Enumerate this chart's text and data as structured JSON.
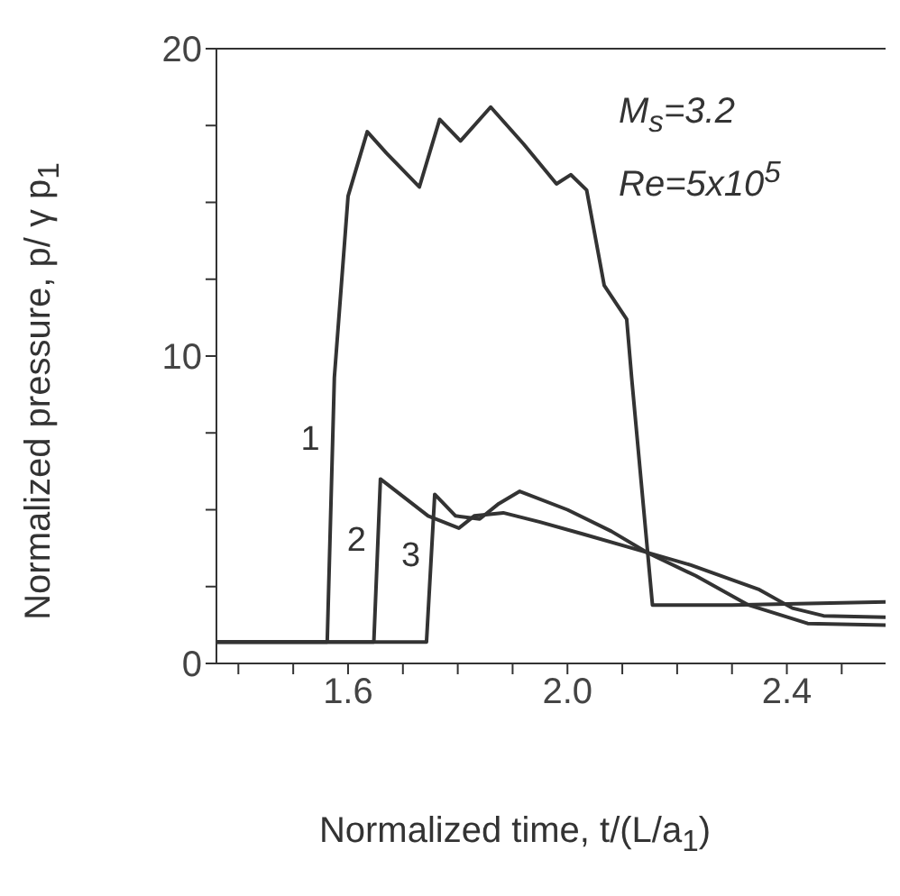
{
  "chart_data": {
    "type": "line",
    "xlabel": "Normalized time, t/(L/a$_{1}$)",
    "ylabel": "Normalized pressure, p/ γ p$_{1}$",
    "xlim": [
      1.36,
      2.58
    ],
    "xticks": [
      {
        "value": 1.4,
        "label": null
      },
      {
        "value": 1.5,
        "label": null
      },
      1.6,
      {
        "value": 1.7,
        "label": null
      },
      {
        "value": 1.8,
        "label": null
      },
      {
        "value": 1.9,
        "label": null
      },
      {
        "value": 2.0,
        "label": "2.0"
      },
      {
        "value": 2.1,
        "label": null
      },
      {
        "value": 2.2,
        "label": null
      },
      {
        "value": 2.3,
        "label": null
      },
      2.4,
      {
        "value": 2.5,
        "label": null
      }
    ],
    "ylim": [
      0,
      20
    ],
    "yticks": [
      0,
      {
        "value": 2.5,
        "label": null
      },
      {
        "value": 5,
        "label": null
      },
      {
        "value": 7.5,
        "label": null
      },
      10,
      {
        "value": 12.5,
        "label": null
      },
      {
        "value": 15,
        "label": null
      },
      {
        "value": 17.5,
        "label": null
      },
      20
    ],
    "line_style": "solid",
    "marker": "none",
    "series": [
      {
        "name": "1",
        "color": "#333333",
        "x": [
          1.36,
          1.562,
          1.575,
          1.6,
          1.635,
          1.67,
          1.73,
          1.767,
          1.805,
          1.86,
          1.92,
          1.98,
          2.006,
          2.035,
          2.067,
          2.108,
          2.117,
          2.155,
          2.3,
          2.58
        ],
        "values": [
          0.7,
          0.7,
          9.3,
          15.2,
          17.3,
          16.6,
          15.5,
          17.7,
          17.0,
          18.1,
          16.9,
          15.6,
          15.9,
          15.4,
          12.3,
          11.2,
          9.3,
          1.9,
          1.9,
          2.0
        ]
      },
      {
        "name": "2",
        "color": "#333333",
        "x": [
          1.36,
          1.647,
          1.659,
          1.746,
          1.802,
          1.83,
          1.883,
          1.95,
          2.03,
          2.108,
          2.225,
          2.35,
          2.41,
          2.467,
          2.58
        ],
        "values": [
          0.7,
          0.7,
          6.0,
          4.8,
          4.4,
          4.8,
          4.9,
          4.6,
          4.2,
          3.8,
          3.2,
          2.4,
          1.8,
          1.55,
          1.5
        ]
      },
      {
        "name": "3",
        "color": "#333333",
        "x": [
          1.36,
          1.743,
          1.758,
          1.796,
          1.84,
          1.875,
          1.913,
          2.0,
          2.08,
          2.146,
          2.234,
          2.33,
          2.438,
          2.58
        ],
        "values": [
          0.7,
          0.7,
          5.5,
          4.8,
          4.7,
          5.2,
          5.6,
          5.0,
          4.3,
          3.6,
          2.85,
          1.9,
          1.3,
          1.25
        ]
      }
    ],
    "annotations": [
      "M$_{s}$=3.2",
      "Re=5x10$^{5}$"
    ]
  }
}
